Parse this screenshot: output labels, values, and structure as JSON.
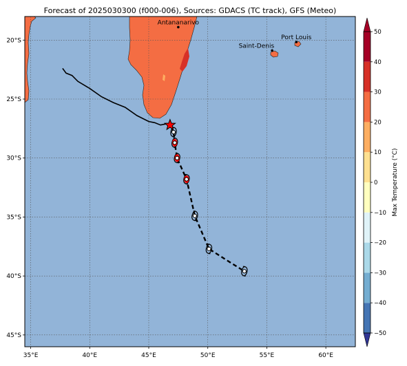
{
  "title": "Forecast of 2025030300 (f000-006), Sources: GDACS (TC track), GFS (Meteo)",
  "map": {
    "lon_range": [
      34.5,
      62.5
    ],
    "lat_range": [
      -46.0,
      -18.0
    ],
    "lon_ticks": [
      {
        "value": 35,
        "label": "35°E"
      },
      {
        "value": 40,
        "label": "40°E"
      },
      {
        "value": 45,
        "label": "45°E"
      },
      {
        "value": 50,
        "label": "50°E"
      },
      {
        "value": 55,
        "label": "55°E"
      },
      {
        "value": 60,
        "label": "60°E"
      }
    ],
    "lat_ticks": [
      {
        "value": -20,
        "label": "20°S"
      },
      {
        "value": -25,
        "label": "25°S"
      },
      {
        "value": -30,
        "label": "30°S"
      },
      {
        "value": -35,
        "label": "35°S"
      },
      {
        "value": -40,
        "label": "40°S"
      },
      {
        "value": -45,
        "label": "45°S"
      }
    ],
    "ocean_color": "#92b4d8",
    "land_color": "#f46d43",
    "gridlines": true
  },
  "cities": [
    {
      "name": "Antananarivo",
      "lon": 47.5,
      "lat": -18.9
    },
    {
      "name": "Saint-Denis",
      "lon": 55.45,
      "lat": -20.88
    },
    {
      "name": "Port Louis",
      "lon": 57.5,
      "lat": -20.16
    }
  ],
  "track": {
    "past": [
      [
        37.7,
        -22.4
      ],
      [
        38.0,
        -22.8
      ],
      [
        38.5,
        -23.0
      ],
      [
        39.0,
        -23.5
      ],
      [
        40.0,
        -24.1
      ],
      [
        41.0,
        -24.8
      ],
      [
        42.0,
        -25.3
      ],
      [
        43.0,
        -25.7
      ],
      [
        44.0,
        -26.4
      ],
      [
        45.0,
        -26.9
      ],
      [
        45.5,
        -27.0
      ],
      [
        46.0,
        -27.2
      ],
      [
        46.5,
        -27.1
      ],
      [
        46.8,
        -27.2
      ],
      [
        47.1,
        -27.8
      ]
    ],
    "forecast": [
      [
        47.1,
        -27.8
      ],
      [
        47.2,
        -28.7
      ],
      [
        47.4,
        -30.0
      ],
      [
        48.2,
        -31.8
      ],
      [
        48.9,
        -34.9
      ],
      [
        50.1,
        -37.7
      ],
      [
        51.5,
        -38.6
      ],
      [
        53.1,
        -39.6
      ]
    ],
    "current_position": {
      "lon": 46.8,
      "lat": -27.2
    },
    "symbols": [
      {
        "lon": 47.1,
        "lat": -27.8,
        "type": "open"
      },
      {
        "lon": 47.2,
        "lat": -28.7,
        "type": "red"
      },
      {
        "lon": 47.4,
        "lat": -30.0,
        "type": "red"
      },
      {
        "lon": 48.2,
        "lat": -31.8,
        "type": "red"
      },
      {
        "lon": 48.9,
        "lat": -34.9,
        "type": "open"
      },
      {
        "lon": 50.1,
        "lat": -37.7,
        "type": "open"
      },
      {
        "lon": 53.1,
        "lat": -39.6,
        "type": "open"
      }
    ]
  },
  "colorbar": {
    "label": "Max Temperature (°C)",
    "min": -50,
    "max": 50,
    "tick_values": [
      -50,
      -40,
      -30,
      -20,
      -10,
      0,
      10,
      20,
      30,
      40,
      50
    ],
    "tick_labels": [
      "−50",
      "−40",
      "−30",
      "−20",
      "−10",
      "0",
      "10",
      "20",
      "30",
      "40",
      "50"
    ],
    "colors": [
      "#313695",
      "#4575b4",
      "#74add1",
      "#abd9e9",
      "#e0f3f8",
      "#ffffbf",
      "#fee090",
      "#fdae61",
      "#f46d43",
      "#d73027",
      "#a50026"
    ]
  }
}
